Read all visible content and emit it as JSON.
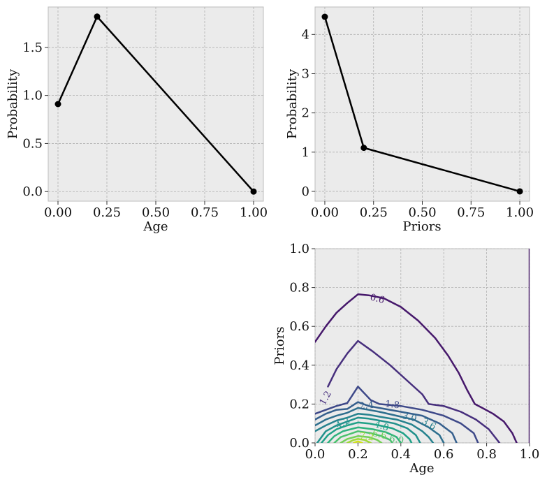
{
  "chart_data": [
    {
      "type": "line",
      "xlabel": "Age",
      "ylabel": "Probability",
      "x": [
        0.0,
        0.2,
        1.0
      ],
      "y": [
        0.91,
        1.82,
        0.0
      ],
      "xlim": [
        -0.05,
        1.05
      ],
      "ylim": [
        -0.1,
        1.92
      ],
      "xticks": [
        0.0,
        0.25,
        0.5,
        0.75,
        1.0
      ],
      "xtick_labels": [
        "0.00",
        "0.25",
        "0.50",
        "0.75",
        "1.00"
      ],
      "yticks": [
        0.0,
        0.5,
        1.0,
        1.5
      ],
      "ytick_labels": [
        "0.0",
        "0.5",
        "1.0",
        "1.5"
      ],
      "grid": true,
      "line_color": "#000000"
    },
    {
      "type": "line",
      "xlabel": "Priors",
      "ylabel": "Probability",
      "x": [
        0.0,
        0.2,
        1.0
      ],
      "y": [
        4.45,
        1.11,
        0.0
      ],
      "xlim": [
        -0.05,
        1.05
      ],
      "ylim": [
        -0.25,
        4.7
      ],
      "xticks": [
        0.0,
        0.25,
        0.5,
        0.75,
        1.0
      ],
      "xtick_labels": [
        "0.00",
        "0.25",
        "0.50",
        "0.75",
        "1.00"
      ],
      "yticks": [
        0,
        1,
        2,
        3,
        4
      ],
      "ytick_labels": [
        "0",
        "1",
        "2",
        "3",
        "4"
      ],
      "grid": true,
      "line_color": "#000000"
    },
    {
      "type": "contour",
      "xlabel": "Age",
      "ylabel": "Priors",
      "xlim": [
        0.0,
        1.0
      ],
      "ylim": [
        0.0,
        1.0
      ],
      "xticks": [
        0.0,
        0.2,
        0.4,
        0.6,
        0.8,
        1.0
      ],
      "xtick_labels": [
        "0.0",
        "0.2",
        "0.4",
        "0.6",
        "0.8",
        "1.0"
      ],
      "yticks": [
        0.0,
        0.2,
        0.4,
        0.6,
        0.8,
        1.0
      ],
      "ytick_labels": [
        "0.0",
        "0.2",
        "0.4",
        "0.6",
        "0.8",
        "1.0"
      ],
      "grid": true,
      "colormap": "viridis",
      "levels": [
        0.6,
        1.2,
        1.8,
        2.4,
        3.0,
        3.6,
        4.2,
        4.8,
        5.4,
        6.0,
        6.6,
        7.2,
        7.8
      ],
      "visible_level_labels": [
        "0.6",
        "1.2",
        "1.8",
        "2.4",
        "3.0",
        "3.6",
        "4.2",
        "4.8",
        "6.0",
        "6.6",
        "7.2"
      ],
      "colors": [
        "#46186b",
        "#472f7d",
        "#3e4989",
        "#355f8d",
        "#2e6f8e",
        "#26828e",
        "#21918c",
        "#1fa187",
        "#2db27d",
        "#4ac16d",
        "#73d056",
        "#a0da39",
        "#d0e11c"
      ]
    }
  ]
}
